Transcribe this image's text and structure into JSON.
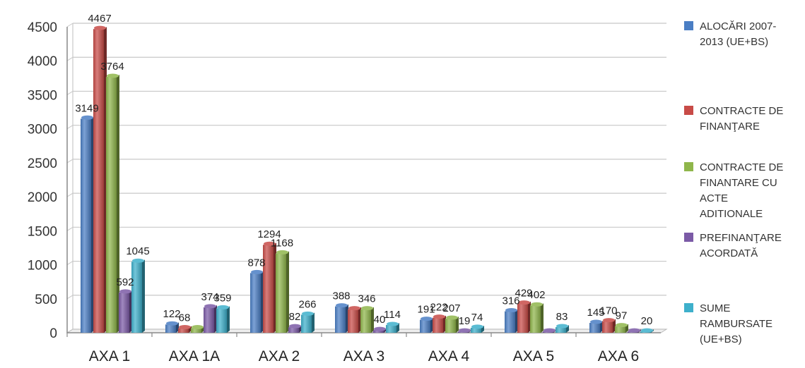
{
  "chart_data": {
    "type": "bar",
    "categories": [
      "AXA 1",
      "AXA 1A",
      "AXA 2",
      "AXA 3",
      "AXA 4",
      "AXA 5",
      "AXA 6"
    ],
    "series": [
      {
        "name": "ALOCĂRI 2007-2013 (UE+BS)",
        "legend_lines": [
          "ALOCĂRI 2007-",
          "2013 (UE+BS)"
        ],
        "color": "#4a7ec4",
        "values": [
          3149,
          122,
          878,
          388,
          191,
          316,
          145
        ]
      },
      {
        "name": "CONTRACTE DE FINANŢARE",
        "legend_lines": [
          "CONTRACTE DE",
          "FINANŢARE"
        ],
        "color": "#c84b47",
        "values": [
          4467,
          68,
          1294,
          346,
          222,
          429,
          170
        ]
      },
      {
        "name": "CONTRACTE DE FINANTARE CU ACTE ADITIONALE",
        "legend_lines": [
          "CONTRACTE DE",
          "FINANTARE CU",
          "ACTE",
          "ADITIONALE"
        ],
        "color": "#8fb64b",
        "values": [
          3764,
          68,
          1168,
          346,
          207,
          402,
          97
        ]
      },
      {
        "name": "PREFINANŢARE ACORDATĂ",
        "legend_lines": [
          "PREFINANŢARE",
          "ACORDATĂ"
        ],
        "color": "#7b5aa6",
        "values": [
          592,
          374,
          82,
          40,
          19,
          20,
          20
        ]
      },
      {
        "name": "SUME RAMBURSATE (UE+BS)",
        "legend_lines": [
          "SUME",
          "RAMBURSATE",
          "(UE+BS)"
        ],
        "color": "#3eb0cb",
        "values": [
          1045,
          359,
          266,
          114,
          74,
          83,
          20
        ]
      }
    ],
    "data_labels": [
      [
        "3149",
        "122",
        "878",
        "388",
        "191",
        "316",
        "145"
      ],
      [
        "4467",
        "68",
        "1294",
        "",
        "222",
        "429",
        "170"
      ],
      [
        "3764",
        "",
        "1168",
        "346",
        "207",
        "402",
        "97"
      ],
      [
        "592",
        "374",
        "82",
        "40",
        "19",
        "",
        ""
      ],
      [
        "1045",
        "359",
        "266",
        "114",
        "74",
        "83",
        "20"
      ]
    ],
    "yticks": [
      "0",
      "500",
      "1000",
      "1500",
      "2000",
      "2500",
      "3000",
      "3500",
      "4000",
      "4500"
    ],
    "ylim": [
      0,
      4500
    ],
    "grid": true,
    "legend_position": "right"
  }
}
